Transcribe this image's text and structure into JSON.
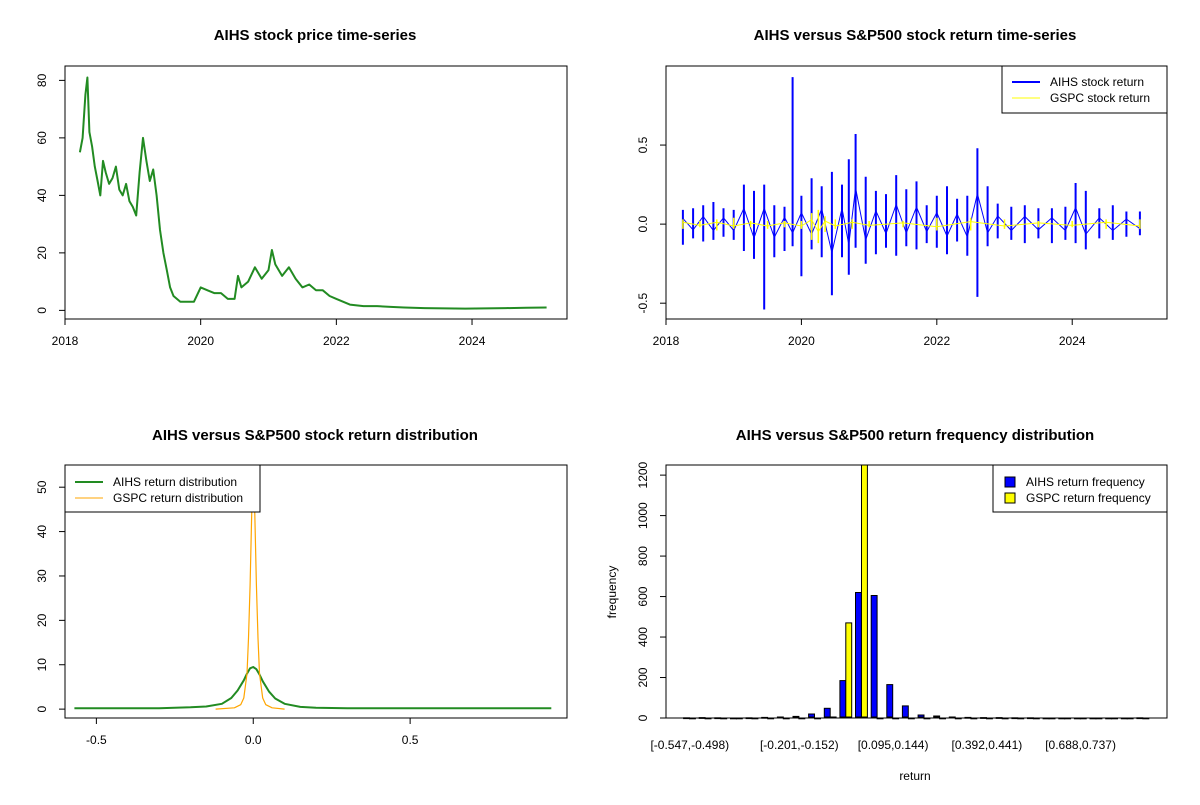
{
  "chart_data": [
    {
      "type": "line",
      "title": "AIHS stock price time-series",
      "xlabel": "",
      "ylabel": "",
      "xlim": [
        2018.0,
        2025.4
      ],
      "ylim": [
        -3,
        85
      ],
      "x_ticks": [
        2018,
        2020,
        2022,
        2024
      ],
      "x_tick_labels": [
        "2018",
        "2020",
        "2022",
        "2024"
      ],
      "y_ticks": [
        0,
        20,
        40,
        60,
        80
      ],
      "y_tick_labels": [
        "0",
        "20",
        "40",
        "60",
        "80"
      ],
      "series": [
        {
          "name": "AIHS price",
          "color": "#228B22",
          "x": [
            2018.22,
            2018.26,
            2018.3,
            2018.33,
            2018.36,
            2018.4,
            2018.44,
            2018.48,
            2018.52,
            2018.56,
            2018.6,
            2018.65,
            2018.7,
            2018.75,
            2018.8,
            2018.85,
            2018.9,
            2018.95,
            2019.0,
            2019.05,
            2019.1,
            2019.15,
            2019.2,
            2019.25,
            2019.3,
            2019.35,
            2019.4,
            2019.45,
            2019.5,
            2019.55,
            2019.6,
            2019.7,
            2019.8,
            2019.9,
            2020.0,
            2020.1,
            2020.2,
            2020.3,
            2020.4,
            2020.5,
            2020.55,
            2020.6,
            2020.7,
            2020.8,
            2020.9,
            2021.0,
            2021.05,
            2021.1,
            2021.2,
            2021.3,
            2021.4,
            2021.5,
            2021.6,
            2021.7,
            2021.8,
            2021.9,
            2022.0,
            2022.2,
            2022.4,
            2022.6,
            2022.8,
            2023.0,
            2023.3,
            2023.6,
            2023.9,
            2024.2,
            2024.5,
            2024.8,
            2025.1
          ],
          "y": [
            55,
            60,
            75,
            81,
            62,
            57,
            50,
            45,
            40,
            52,
            48,
            44,
            46,
            50,
            42,
            40,
            44,
            38,
            36,
            33,
            48,
            60,
            52,
            45,
            49,
            40,
            28,
            20,
            14,
            8,
            5,
            3,
            3,
            3,
            8,
            7,
            6,
            6,
            4,
            4,
            12,
            8,
            10,
            15,
            11,
            14,
            21,
            16,
            12,
            15,
            11,
            8,
            9,
            7,
            7,
            5,
            4,
            2,
            1.5,
            1.5,
            1.2,
            1.0,
            0.8,
            0.7,
            0.6,
            0.7,
            0.8,
            0.9,
            1.0
          ]
        }
      ]
    },
    {
      "type": "line",
      "title": "AIHS versus S&P500 stock return time-series",
      "xlabel": "",
      "ylabel": "",
      "xlim": [
        2018.0,
        2025.4
      ],
      "ylim": [
        -0.6,
        1.0
      ],
      "x_ticks": [
        2018,
        2020,
        2022,
        2024
      ],
      "x_tick_labels": [
        "2018",
        "2020",
        "2022",
        "2024"
      ],
      "y_ticks": [
        -0.5,
        0.0,
        0.5
      ],
      "y_tick_labels": [
        "-0.5",
        "0.0",
        "0.5"
      ],
      "legend": [
        "AIHS stock return",
        "GSPC stock return"
      ],
      "legend_position": "top-right",
      "series": [
        {
          "name": "AIHS stock return",
          "color": "#0000FF",
          "x": [
            2018.25,
            2018.4,
            2018.55,
            2018.7,
            2018.85,
            2019.0,
            2019.15,
            2019.3,
            2019.45,
            2019.6,
            2019.75,
            2019.87,
            2020.0,
            2020.15,
            2020.3,
            2020.45,
            2020.6,
            2020.7,
            2020.8,
            2020.95,
            2021.1,
            2021.25,
            2021.4,
            2021.55,
            2021.7,
            2021.85,
            2022.0,
            2022.15,
            2022.3,
            2022.45,
            2022.6,
            2022.75,
            2022.9,
            2023.1,
            2023.3,
            2023.5,
            2023.7,
            2023.9,
            2024.05,
            2024.2,
            2024.4,
            2024.6,
            2024.8,
            2025.0
          ],
          "high": [
            0.09,
            0.1,
            0.12,
            0.14,
            0.1,
            0.09,
            0.25,
            0.21,
            0.25,
            0.12,
            0.11,
            0.93,
            0.18,
            0.29,
            0.24,
            0.33,
            0.25,
            0.41,
            0.57,
            0.3,
            0.21,
            0.19,
            0.31,
            0.22,
            0.27,
            0.12,
            0.18,
            0.24,
            0.16,
            0.18,
            0.48,
            0.24,
            0.13,
            0.11,
            0.12,
            0.1,
            0.1,
            0.11,
            0.26,
            0.21,
            0.1,
            0.12,
            0.08,
            0.08
          ],
          "low": [
            -0.13,
            -0.09,
            -0.11,
            -0.1,
            -0.08,
            -0.1,
            -0.17,
            -0.22,
            -0.54,
            -0.21,
            -0.17,
            -0.14,
            -0.33,
            -0.16,
            -0.21,
            -0.45,
            -0.21,
            -0.32,
            -0.15,
            -0.25,
            -0.19,
            -0.15,
            -0.2,
            -0.14,
            -0.16,
            -0.12,
            -0.15,
            -0.19,
            -0.11,
            -0.2,
            -0.46,
            -0.14,
            -0.09,
            -0.1,
            -0.12,
            -0.09,
            -0.12,
            -0.1,
            -0.12,
            -0.16,
            -0.09,
            -0.1,
            -0.08,
            -0.07
          ]
        },
        {
          "name": "GSPC stock return",
          "color": "#FFFF00",
          "x": [
            2018.25,
            2018.5,
            2018.75,
            2019.0,
            2019.25,
            2019.5,
            2019.75,
            2020.0,
            2020.15,
            2020.25,
            2020.35,
            2020.5,
            2020.75,
            2021.0,
            2021.5,
            2022.0,
            2022.5,
            2023.0,
            2023.5,
            2024.0,
            2024.5,
            2025.0
          ],
          "high": [
            0.03,
            0.02,
            0.03,
            0.04,
            0.02,
            0.02,
            0.02,
            0.02,
            0.07,
            0.09,
            0.05,
            0.03,
            0.03,
            0.02,
            0.02,
            0.04,
            0.04,
            0.03,
            0.02,
            0.02,
            0.03,
            0.03
          ],
          "low": [
            -0.03,
            -0.02,
            -0.04,
            -0.03,
            -0.02,
            -0.03,
            -0.02,
            -0.03,
            -0.1,
            -0.12,
            -0.05,
            -0.03,
            -0.03,
            -0.02,
            -0.02,
            -0.04,
            -0.04,
            -0.03,
            -0.02,
            -0.02,
            -0.03,
            -0.03
          ]
        }
      ]
    },
    {
      "type": "line",
      "title": "AIHS versus S&P500 stock return distribution",
      "xlabel": "",
      "ylabel": "",
      "xlim": [
        -0.6,
        1.0
      ],
      "ylim": [
        -2,
        55
      ],
      "x_ticks": [
        -0.5,
        0.0,
        0.5
      ],
      "x_tick_labels": [
        "-0.5",
        "0.0",
        "0.5"
      ],
      "y_ticks": [
        0,
        10,
        20,
        30,
        40,
        50
      ],
      "y_tick_labels": [
        "0",
        "10",
        "20",
        "30",
        "40",
        "50"
      ],
      "legend": [
        "AIHS return distribution",
        "GSPC return distribution"
      ],
      "legend_position": "top-left",
      "series": [
        {
          "name": "AIHS return distribution",
          "color": "#228B22",
          "x": [
            -0.57,
            -0.4,
            -0.3,
            -0.2,
            -0.15,
            -0.1,
            -0.07,
            -0.05,
            -0.03,
            -0.02,
            -0.01,
            0.0,
            0.01,
            0.02,
            0.03,
            0.05,
            0.07,
            0.1,
            0.15,
            0.2,
            0.3,
            0.5,
            0.8,
            0.95
          ],
          "y": [
            0.2,
            0.2,
            0.2,
            0.4,
            0.6,
            1.2,
            2.5,
            4.2,
            6.5,
            8.0,
            9.2,
            9.5,
            9.0,
            7.8,
            6.3,
            4.0,
            2.4,
            1.2,
            0.5,
            0.3,
            0.2,
            0.2,
            0.2,
            0.2
          ]
        },
        {
          "name": "GSPC return distribution",
          "color": "#FFA500",
          "x": [
            -0.12,
            -0.06,
            -0.04,
            -0.03,
            -0.02,
            -0.015,
            -0.01,
            -0.005,
            0.0,
            0.005,
            0.01,
            0.015,
            0.02,
            0.03,
            0.04,
            0.06,
            0.1
          ],
          "y": [
            0.0,
            0.3,
            1.0,
            2.5,
            8.0,
            16.0,
            28.0,
            44.0,
            53.0,
            44.0,
            28.0,
            16.0,
            8.0,
            2.5,
            1.0,
            0.3,
            0.0
          ]
        }
      ]
    },
    {
      "type": "bar",
      "title": "AIHS versus S&P500 return frequency distribution",
      "xlabel": "return",
      "ylabel": "frequency",
      "ylim": [
        0,
        1250
      ],
      "y_ticks": [
        0,
        200,
        400,
        600,
        800,
        1000,
        1200
      ],
      "y_tick_labels": [
        "0",
        "200",
        "400",
        "600",
        "800",
        "1000",
        "1200"
      ],
      "categories": [
        "[-0.547,-0.498)",
        "[-0.498,-0.448)",
        "[-0.448,-0.399)",
        "[-0.399,-0.349)",
        "[-0.349,-0.300)",
        "[-0.300,-0.251)",
        "[-0.251,-0.201)",
        "[-0.201,-0.152)",
        "[-0.152,-0.102)",
        "[-0.102,-0.053)",
        "[-0.053,-0.004)",
        "[-0.004,0.046)",
        "[0.046,0.095)",
        "[0.095,0.144)",
        "[0.144,0.194)",
        "[0.194,0.243)",
        "[0.243,0.293)",
        "[0.293,0.342)",
        "[0.342,0.392)",
        "[0.392,0.441)",
        "[0.441,0.490)",
        "[0.490,0.540)",
        "[0.540,0.589)",
        "[0.589,0.638)",
        "[0.638,0.688)",
        "[0.688,0.737)",
        "[0.737,0.787)",
        "[0.787,0.836)",
        "[0.836,0.885)",
        "[0.885,0.935)"
      ],
      "shown_category_labels": [
        "[-0.547,-0.498)",
        "[-0.201,-0.152)",
        "[0.095,0.144)",
        "[0.392,0.441)",
        "[0.688,0.737)"
      ],
      "legend": [
        "AIHS return frequency",
        "GSPC return frequency"
      ],
      "legend_position": "top-right",
      "series": [
        {
          "name": "AIHS return frequency",
          "color": "#0000FF",
          "values": [
            1,
            2,
            1,
            0,
            1,
            3,
            5,
            8,
            20,
            48,
            185,
            620,
            605,
            165,
            60,
            15,
            10,
            5,
            3,
            2,
            2,
            1,
            1,
            0,
            0,
            0,
            0,
            0,
            0,
            1
          ]
        },
        {
          "name": "GSPC return frequency",
          "color": "#FFFF00",
          "values": [
            0,
            0,
            0,
            0,
            0,
            0,
            0,
            0,
            0,
            5,
            470,
            1250,
            0,
            0,
            0,
            0,
            0,
            0,
            0,
            0,
            0,
            0,
            0,
            0,
            0,
            0,
            0,
            0,
            0,
            0
          ]
        }
      ]
    }
  ]
}
